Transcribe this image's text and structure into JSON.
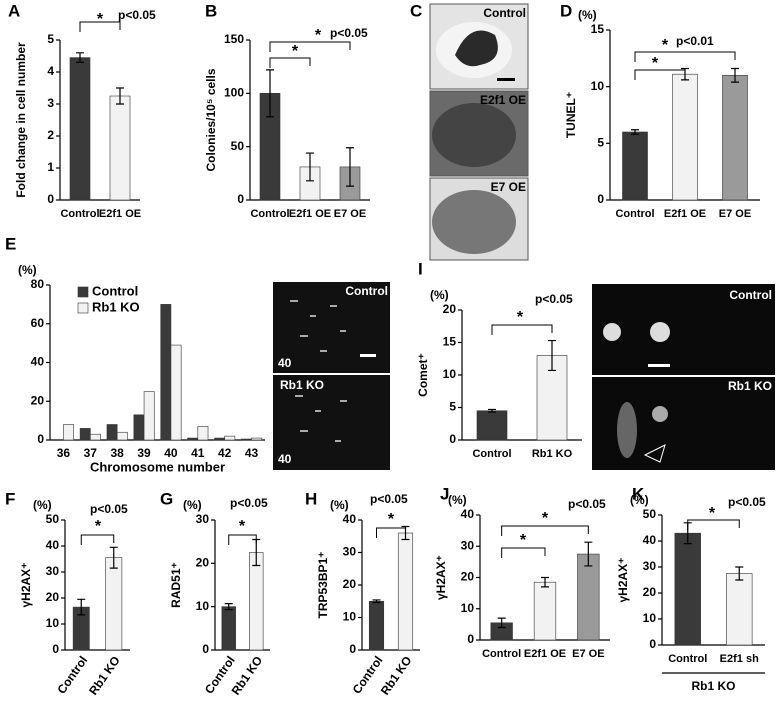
{
  "chart_data": [
    {
      "type": "bar",
      "panel": "A",
      "y_label": "Fold change in cell number",
      "categories": [
        "Control",
        "E2f1 OE"
      ],
      "values": [
        4.45,
        3.25
      ],
      "errors": [
        0.15,
        0.25
      ],
      "colors": [
        "#3a3a3a",
        "#f2f2f2"
      ],
      "ylim": [
        0,
        5
      ],
      "yticks": [
        0,
        1,
        2,
        3,
        4,
        5
      ],
      "annotations": [
        "*",
        "p<0.05"
      ]
    },
    {
      "type": "bar",
      "panel": "B",
      "y_label": "Colonies/10⁵ cells",
      "categories": [
        "Control",
        "E2f1 OE",
        "E7 OE"
      ],
      "values": [
        100,
        31,
        31
      ],
      "errors": [
        22,
        13,
        18
      ],
      "colors": [
        "#3a3a3a",
        "#f2f2f2",
        "#9a9a9a"
      ],
      "ylim": [
        0,
        150
      ],
      "yticks": [
        0,
        50,
        100,
        150
      ],
      "annotations": [
        "*",
        "*",
        "p<0.05"
      ]
    },
    {
      "type": "bar",
      "panel": "D",
      "y_unit": "(%)",
      "y_label": "TUNEL⁺",
      "categories": [
        "Control",
        "E2f1 OE",
        "E7 OE"
      ],
      "values": [
        6,
        11.1,
        11
      ],
      "errors": [
        0.2,
        0.5,
        0.6
      ],
      "colors": [
        "#3a3a3a",
        "#f2f2f2",
        "#9a9a9a"
      ],
      "ylim": [
        0,
        15
      ],
      "yticks": [
        0,
        5,
        10,
        15
      ],
      "annotations": [
        "*",
        "*",
        "p<0.01"
      ]
    },
    {
      "type": "bar",
      "panel": "E",
      "y_unit": "(%)",
      "x_label": "Chromosome number",
      "categories": [
        "36",
        "37",
        "38",
        "39",
        "40",
        "41",
        "42",
        "43"
      ],
      "series": [
        {
          "name": "Control",
          "color": "#3a3a3a",
          "values": [
            0,
            6,
            8,
            13,
            70,
            1,
            1,
            0.5
          ]
        },
        {
          "name": "Rb1 KO",
          "color": "#f2f2f2",
          "values": [
            8,
            3,
            4,
            25,
            49,
            7,
            2,
            1
          ]
        }
      ],
      "ylim": [
        0,
        80
      ],
      "yticks": [
        0,
        20,
        40,
        60,
        80
      ]
    },
    {
      "type": "bar",
      "panel": "I",
      "y_unit": "(%)",
      "y_label": "Comet⁺",
      "categories": [
        "Control",
        "Rb1 KO"
      ],
      "values": [
        4.5,
        13
      ],
      "errors": [
        0.2,
        2.3
      ],
      "colors": [
        "#3a3a3a",
        "#f2f2f2"
      ],
      "ylim": [
        0,
        20
      ],
      "yticks": [
        0,
        5,
        10,
        15,
        20
      ],
      "annotations": [
        "*",
        "p<0.05"
      ]
    },
    {
      "type": "bar",
      "panel": "F",
      "y_unit": "(%)",
      "y_label": "γH2AX⁺",
      "categories": [
        "Control",
        "Rb1 KO"
      ],
      "values": [
        16.5,
        35.5
      ],
      "errors": [
        3,
        4
      ],
      "colors": [
        "#3a3a3a",
        "#f2f2f2"
      ],
      "ylim": [
        0,
        50
      ],
      "yticks": [
        0,
        10,
        20,
        30,
        40,
        50
      ],
      "annotations": [
        "*",
        "p<0.05"
      ]
    },
    {
      "type": "bar",
      "panel": "G",
      "y_unit": "(%)",
      "y_label": "RAD51⁺",
      "categories": [
        "Control",
        "Rb1 KO"
      ],
      "values": [
        10,
        22.5
      ],
      "errors": [
        0.7,
        3
      ],
      "colors": [
        "#3a3a3a",
        "#f2f2f2"
      ],
      "ylim": [
        0,
        30
      ],
      "yticks": [
        0,
        10,
        20,
        30
      ],
      "annotations": [
        "*",
        "p<0.05"
      ]
    },
    {
      "type": "bar",
      "panel": "H",
      "y_unit": "(%)",
      "y_label": "TRP53BP1⁺",
      "categories": [
        "Control",
        "Rb1 KO"
      ],
      "values": [
        15,
        36
      ],
      "errors": [
        0.4,
        2
      ],
      "colors": [
        "#3a3a3a",
        "#f2f2f2"
      ],
      "ylim": [
        0,
        40
      ],
      "yticks": [
        0,
        10,
        20,
        30,
        40
      ],
      "annotations": [
        "*",
        "p<0.05"
      ]
    },
    {
      "type": "bar",
      "panel": "J",
      "y_unit": "(%)",
      "y_label": "γH2AX⁺",
      "categories": [
        "Control",
        "E2f1 OE",
        "E7 OE"
      ],
      "values": [
        5.5,
        18.5,
        27.5
      ],
      "errors": [
        1.5,
        1.5,
        3.8
      ],
      "colors": [
        "#3a3a3a",
        "#f2f2f2",
        "#9a9a9a"
      ],
      "ylim": [
        0,
        40
      ],
      "yticks": [
        0,
        10,
        20,
        30,
        40
      ],
      "annotations": [
        "*",
        "*",
        "p<0.05"
      ]
    },
    {
      "type": "bar",
      "panel": "K",
      "y_unit": "(%)",
      "y_label": "γH2AX⁺",
      "categories": [
        "Control",
        "E2f1 sh"
      ],
      "group_label": "Rb1 KO",
      "values": [
        43,
        27.5
      ],
      "errors": [
        4,
        2.5
      ],
      "colors": [
        "#3a3a3a",
        "#f2f2f2"
      ],
      "ylim": [
        0,
        50
      ],
      "yticks": [
        0,
        10,
        20,
        30,
        40,
        50
      ],
      "annotations": [
        "*",
        "p<0.05"
      ]
    }
  ],
  "image_panels": [
    {
      "panel": "C",
      "labels": [
        "Control",
        "E2f1 OE",
        "E7 OE"
      ]
    },
    {
      "labels": [
        "Control",
        "40",
        "Rb1 KO",
        "40"
      ]
    },
    {
      "labels": [
        "Control",
        "Rb1 KO"
      ]
    }
  ]
}
